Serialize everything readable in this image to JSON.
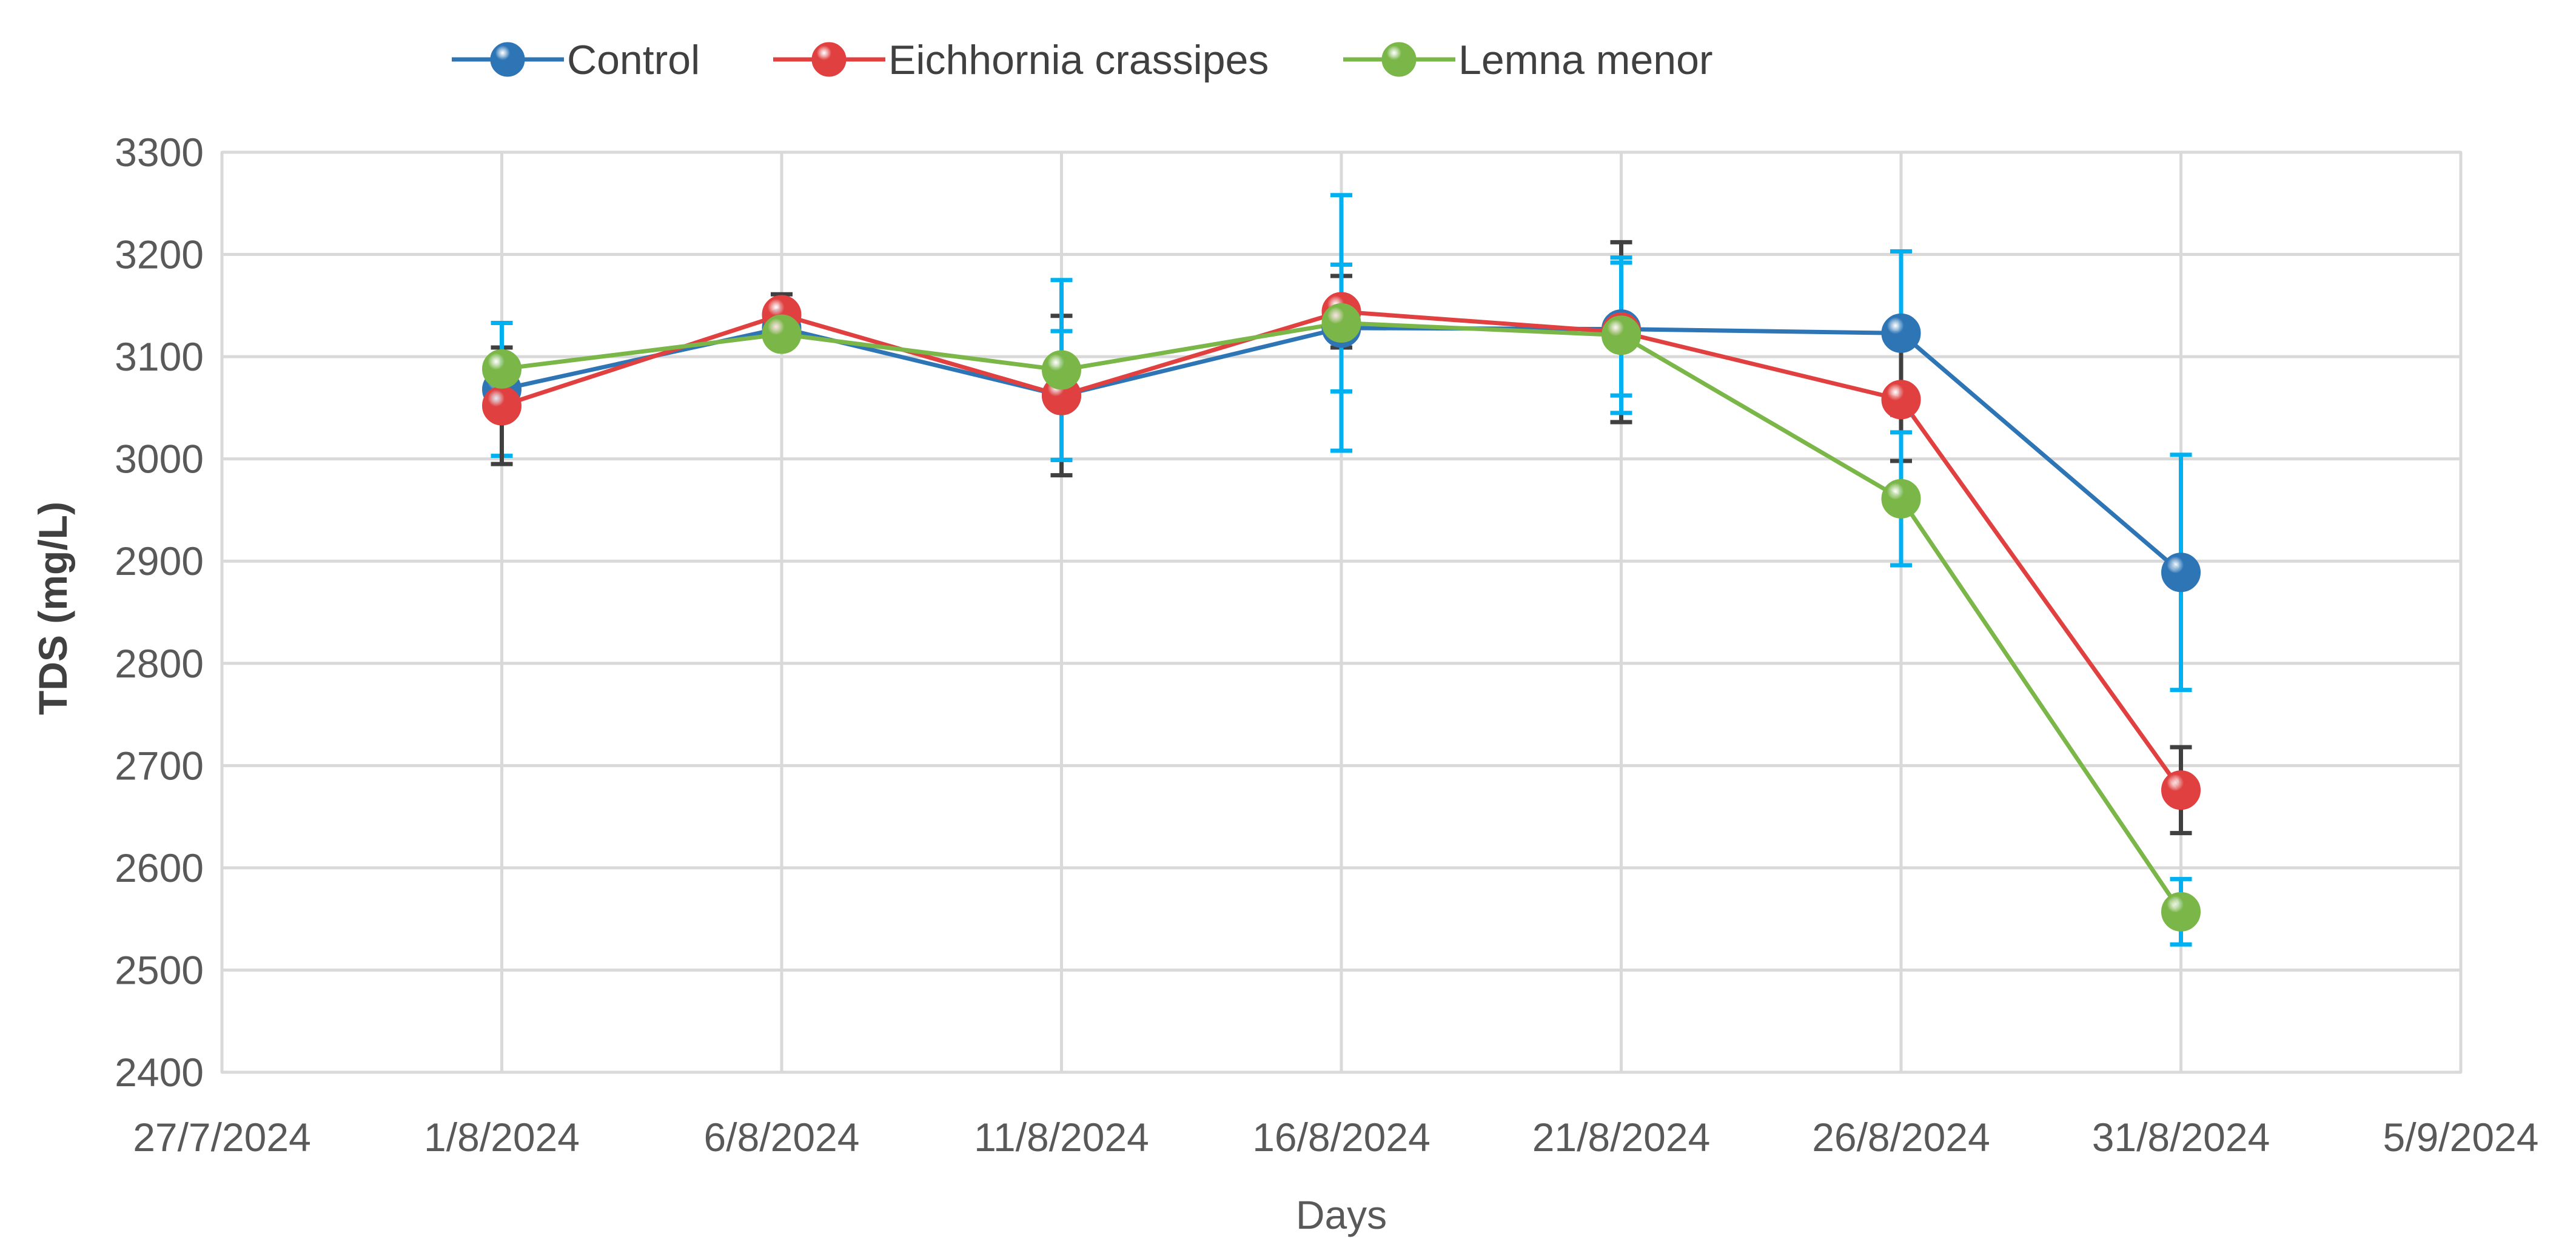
{
  "chart_data": {
    "type": "line",
    "title": "",
    "xlabel": "Days",
    "ylabel": "TDS (mg/L)",
    "x_ticks": [
      "27/7/2024",
      "1/8/2024",
      "6/8/2024",
      "11/8/2024",
      "16/8/2024",
      "21/8/2024",
      "26/8/2024",
      "31/8/2024",
      "5/9/2024"
    ],
    "y_ticks": [
      "2400",
      "2500",
      "2600",
      "2700",
      "2800",
      "2900",
      "3000",
      "3100",
      "3200",
      "3300"
    ],
    "ylim": [
      2400,
      3300
    ],
    "xlim": [
      "27/7/2024",
      "5/9/2024"
    ],
    "grid": true,
    "legend": "top",
    "series": [
      {
        "name": "Control",
        "color": "#2e75b6",
        "error_bar_color": "#00b0f0",
        "x": [
          "1/8/2024",
          "6/8/2024",
          "11/8/2024",
          "16/8/2024",
          "21/8/2024",
          "26/8/2024",
          "31/8/2024"
        ],
        "y": [
          3068,
          3128,
          3062,
          3128,
          3127,
          3123,
          2889
        ],
        "err": [
          65,
          8,
          63,
          62,
          65,
          80,
          115
        ]
      },
      {
        "name": "Eichhornia crassipes",
        "color": "#e04040",
        "error_bar_color": "#404040",
        "x": [
          "1/8/2024",
          "6/8/2024",
          "11/8/2024",
          "16/8/2024",
          "21/8/2024",
          "26/8/2024",
          "31/8/2024"
        ],
        "y": [
          3052,
          3141,
          3062,
          3144,
          3124,
          3058,
          2676
        ],
        "err": [
          57,
          20,
          78,
          35,
          88,
          60,
          42
        ]
      },
      {
        "name": "Lemna menor",
        "color": "#7ab648",
        "error_bar_color": "#00b0f0",
        "x": [
          "1/8/2024",
          "6/8/2024",
          "11/8/2024",
          "16/8/2024",
          "21/8/2024",
          "26/8/2024",
          "31/8/2024"
        ],
        "y": [
          3088,
          3122,
          3087,
          3133,
          3121,
          2961,
          2557
        ],
        "err": [
          45,
          8,
          88,
          125,
          76,
          65,
          32
        ]
      }
    ]
  }
}
